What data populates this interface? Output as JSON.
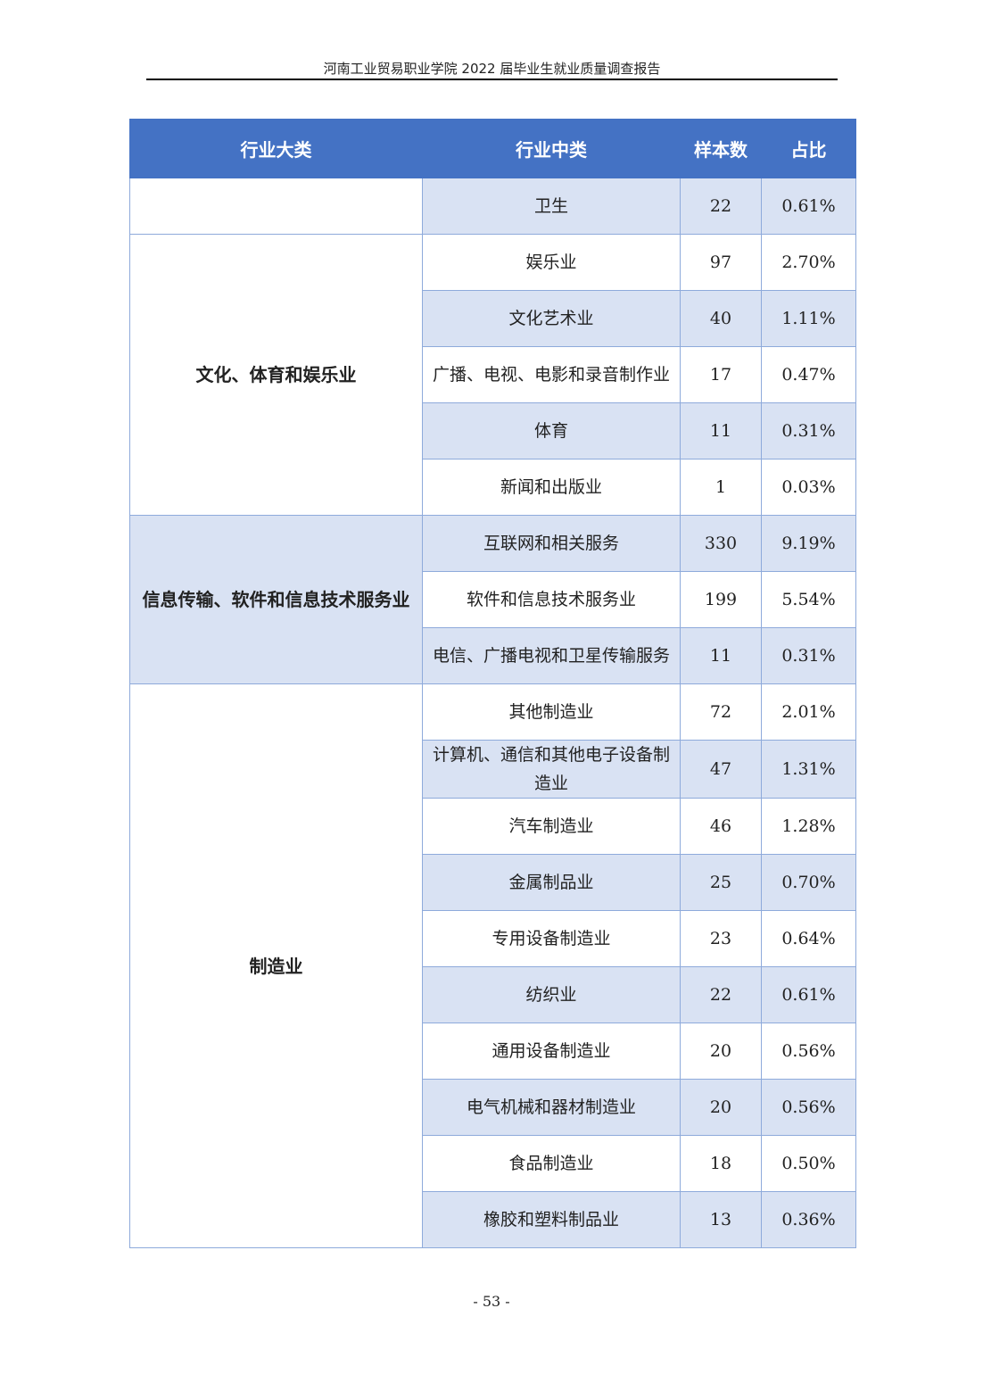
{
  "running_head": "河南工业贸易职业学院 2022 届毕业生就业质量调查报告",
  "page_number": "- 53 -",
  "colors": {
    "header_bg": "#4472C4",
    "shade_bg": "#D9E2F3",
    "border": "#8EAADB"
  },
  "table": {
    "headers": [
      "行业大类",
      "行业中类",
      "样本数",
      "占比"
    ],
    "groups": [
      {
        "major": "",
        "shaded": false,
        "rows": [
          {
            "minor": "卫生",
            "count": "22",
            "pct": "0.61%"
          }
        ]
      },
      {
        "major": "文化、体育和娱乐业",
        "shaded": false,
        "rows": [
          {
            "minor": "娱乐业",
            "count": "97",
            "pct": "2.70%"
          },
          {
            "minor": "文化艺术业",
            "count": "40",
            "pct": "1.11%"
          },
          {
            "minor": "广播、电视、电影和录音制作业",
            "count": "17",
            "pct": "0.47%"
          },
          {
            "minor": "体育",
            "count": "11",
            "pct": "0.31%"
          },
          {
            "minor": "新闻和出版业",
            "count": "1",
            "pct": "0.03%"
          }
        ]
      },
      {
        "major": "信息传输、软件和信息技术服务业",
        "shaded": true,
        "rows": [
          {
            "minor": "互联网和相关服务",
            "count": "330",
            "pct": "9.19%"
          },
          {
            "minor": "软件和信息技术服务业",
            "count": "199",
            "pct": "5.54%"
          },
          {
            "minor": "电信、广播电视和卫星传输服务",
            "count": "11",
            "pct": "0.31%"
          }
        ]
      },
      {
        "major": "制造业",
        "shaded": false,
        "rows": [
          {
            "minor": "其他制造业",
            "count": "72",
            "pct": "2.01%"
          },
          {
            "minor": "计算机、通信和其他电子设备制造业",
            "count": "47",
            "pct": "1.31%"
          },
          {
            "minor": "汽车制造业",
            "count": "46",
            "pct": "1.28%"
          },
          {
            "minor": "金属制品业",
            "count": "25",
            "pct": "0.70%"
          },
          {
            "minor": "专用设备制造业",
            "count": "23",
            "pct": "0.64%"
          },
          {
            "minor": "纺织业",
            "count": "22",
            "pct": "0.61%"
          },
          {
            "minor": "通用设备制造业",
            "count": "20",
            "pct": "0.56%"
          },
          {
            "minor": "电气机械和器材制造业",
            "count": "20",
            "pct": "0.56%"
          },
          {
            "minor": "食品制造业",
            "count": "18",
            "pct": "0.50%"
          },
          {
            "minor": "橡胶和塑料制品业",
            "count": "13",
            "pct": "0.36%"
          }
        ]
      }
    ]
  }
}
